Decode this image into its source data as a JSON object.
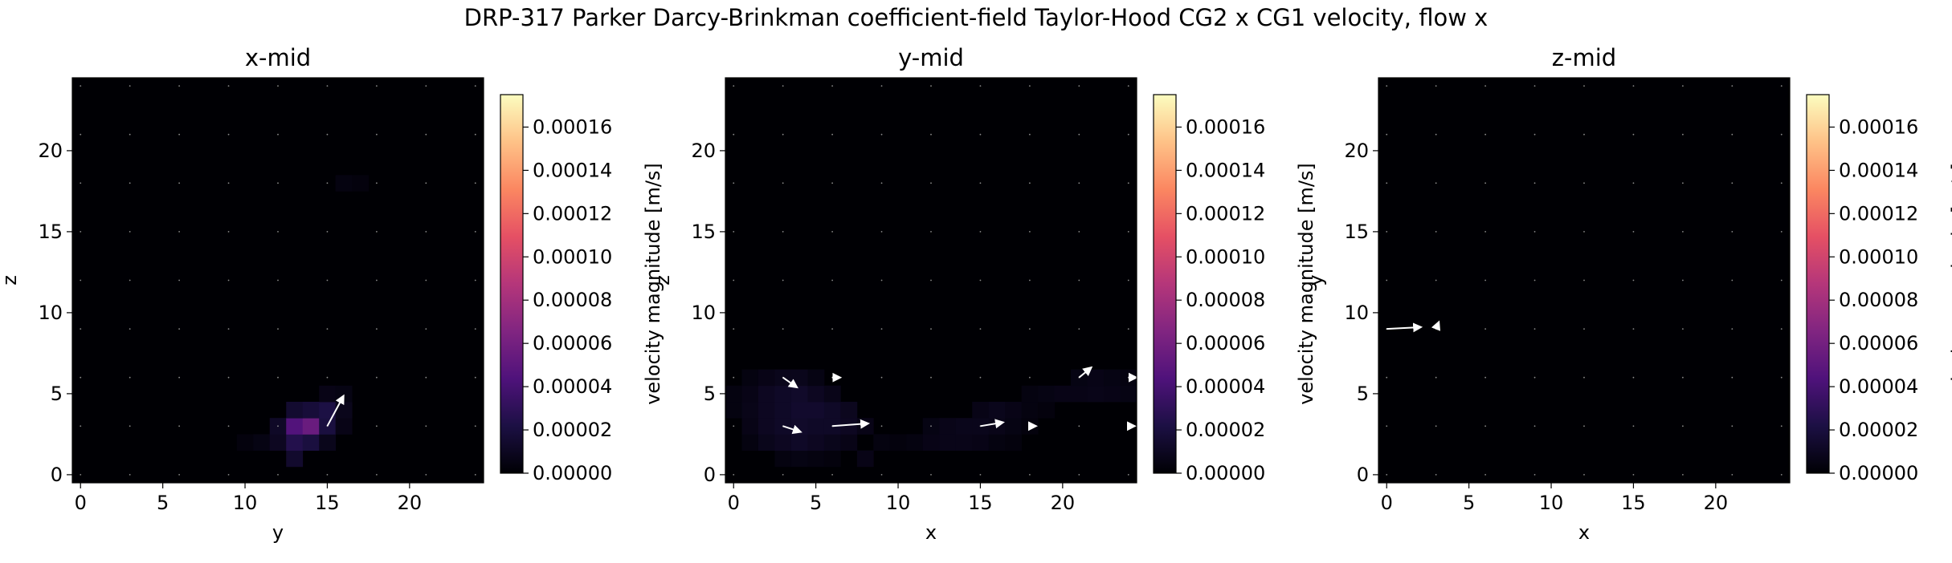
{
  "figure": {
    "suptitle": "DRP-317 Parker Darcy-Brinkman coefficient-field Taylor-Hood CG2 x CG1 velocity, flow x"
  },
  "colormap": {
    "name": "magma",
    "stops": [
      "#000004",
      "#1c1044",
      "#4f127b",
      "#812581",
      "#b5367a",
      "#e55064",
      "#fb8761",
      "#fec287",
      "#fcfdbf"
    ]
  },
  "chart_data": [
    {
      "type": "heatmap",
      "title": "x-mid",
      "xlabel": "y",
      "ylabel": "z",
      "xlim": [
        -0.5,
        24.5
      ],
      "ylim": [
        -0.5,
        24.5
      ],
      "xticks": [
        0,
        5,
        10,
        15,
        20
      ],
      "yticks": [
        0,
        5,
        10,
        15,
        20
      ],
      "grid_size": 25,
      "colorbar": {
        "label": "velocity magnitude [m/s]",
        "range": [
          0,
          0.000175
        ],
        "ticks": [
          "0.00000",
          "0.00002",
          "0.00004",
          "0.00006",
          "0.00008",
          "0.00010",
          "0.00012",
          "0.00014",
          "0.00016"
        ]
      },
      "cells": [
        [
          13,
          1,
          1.4e-05
        ],
        [
          10,
          2,
          3e-06
        ],
        [
          11,
          2,
          5e-06
        ],
        [
          12,
          2,
          1e-05
        ],
        [
          13,
          2,
          2.5e-05
        ],
        [
          14,
          2,
          2e-05
        ],
        [
          15,
          2,
          8e-06
        ],
        [
          12,
          3,
          1.2e-05
        ],
        [
          13,
          3,
          4.5e-05
        ],
        [
          14,
          3,
          5.5e-05
        ],
        [
          15,
          3,
          2e-05
        ],
        [
          16,
          3,
          6e-06
        ],
        [
          13,
          4,
          1.5e-05
        ],
        [
          14,
          4,
          1.8e-05
        ],
        [
          15,
          4,
          2.2e-05
        ],
        [
          16,
          4,
          8e-06
        ],
        [
          15,
          5,
          6e-06
        ],
        [
          16,
          5,
          5e-06
        ],
        [
          16,
          18,
          4e-06
        ],
        [
          17,
          18,
          3e-06
        ]
      ],
      "arrows": [
        {
          "x": 15.0,
          "y": 3.0,
          "dx": 0.9,
          "dy": 1.7
        }
      ]
    },
    {
      "type": "heatmap",
      "title": "y-mid",
      "xlabel": "x",
      "ylabel": "z",
      "xlim": [
        -0.5,
        24.5
      ],
      "ylim": [
        -0.5,
        24.5
      ],
      "xticks": [
        0,
        5,
        10,
        15,
        20
      ],
      "yticks": [
        0,
        5,
        10,
        15,
        20
      ],
      "grid_size": 25,
      "colorbar": {
        "label": "velocity magnitude [m/s]",
        "range": [
          0,
          0.000175
        ],
        "ticks": [
          "0.00000",
          "0.00002",
          "0.00004",
          "0.00006",
          "0.00008",
          "0.00010",
          "0.00012",
          "0.00014",
          "0.00016"
        ]
      },
      "cells": [
        [
          3,
          1,
          4e-06
        ],
        [
          4,
          1,
          5e-06
        ],
        [
          5,
          1,
          4e-06
        ],
        [
          6,
          1,
          3e-06
        ],
        [
          8,
          1,
          6e-06
        ],
        [
          1,
          2,
          4e-06
        ],
        [
          2,
          2,
          8e-06
        ],
        [
          3,
          2,
          1e-05
        ],
        [
          4,
          2,
          1.2e-05
        ],
        [
          5,
          2,
          1e-05
        ],
        [
          6,
          2,
          8e-06
        ],
        [
          7,
          2,
          6e-06
        ],
        [
          9,
          2,
          4e-06
        ],
        [
          10,
          2,
          3e-06
        ],
        [
          11,
          2,
          4e-06
        ],
        [
          12,
          2,
          6e-06
        ],
        [
          13,
          2,
          7e-06
        ],
        [
          14,
          2,
          7e-06
        ],
        [
          15,
          2,
          6e-06
        ],
        [
          16,
          2,
          4e-06
        ],
        [
          17,
          2,
          3e-06
        ],
        [
          1,
          3,
          6e-06
        ],
        [
          2,
          3,
          1e-05
        ],
        [
          3,
          3,
          1.2e-05
        ],
        [
          4,
          3,
          1.3e-05
        ],
        [
          5,
          3,
          1.2e-05
        ],
        [
          6,
          3,
          1.2e-05
        ],
        [
          7,
          3,
          1e-05
        ],
        [
          8,
          3,
          6e-06
        ],
        [
          12,
          3,
          5e-06
        ],
        [
          13,
          3,
          7e-06
        ],
        [
          14,
          3,
          8e-06
        ],
        [
          15,
          3,
          8e-06
        ],
        [
          16,
          3,
          7e-06
        ],
        [
          17,
          3,
          5e-06
        ],
        [
          18,
          3,
          3e-06
        ],
        [
          0,
          4,
          4e-06
        ],
        [
          1,
          4,
          7e-06
        ],
        [
          2,
          4,
          1e-05
        ],
        [
          3,
          4,
          1.2e-05
        ],
        [
          4,
          4,
          1.4e-05
        ],
        [
          5,
          4,
          1.4e-05
        ],
        [
          6,
          4,
          1.2e-05
        ],
        [
          7,
          4,
          9e-06
        ],
        [
          15,
          4,
          6e-06
        ],
        [
          16,
          4,
          8e-06
        ],
        [
          17,
          4,
          6e-06
        ],
        [
          18,
          4,
          4e-06
        ],
        [
          19,
          4,
          3e-06
        ],
        [
          0,
          5,
          4e-06
        ],
        [
          1,
          5,
          6e-06
        ],
        [
          2,
          5,
          1e-05
        ],
        [
          3,
          5,
          1.2e-05
        ],
        [
          4,
          5,
          1.3e-05
        ],
        [
          5,
          5,
          1e-05
        ],
        [
          6,
          5,
          7e-06
        ],
        [
          18,
          5,
          4e-06
        ],
        [
          19,
          5,
          5e-06
        ],
        [
          20,
          5,
          6e-06
        ],
        [
          21,
          5,
          6e-06
        ],
        [
          22,
          5,
          7e-06
        ],
        [
          23,
          5,
          6e-06
        ],
        [
          24,
          5,
          5e-06
        ],
        [
          1,
          6,
          4e-06
        ],
        [
          2,
          6,
          6e-06
        ],
        [
          3,
          6,
          8e-06
        ],
        [
          4,
          6,
          8e-06
        ],
        [
          5,
          6,
          5e-06
        ],
        [
          21,
          6,
          5e-06
        ],
        [
          22,
          6,
          6e-06
        ],
        [
          23,
          6,
          5e-06
        ],
        [
          24,
          6,
          4e-06
        ]
      ],
      "arrows": [
        {
          "x": 3.0,
          "y": 6.0,
          "dx": 0.7,
          "dy": -0.5
        },
        {
          "x": 6.0,
          "y": 6.0,
          "dx": 0.3,
          "dy": 0.0
        },
        {
          "x": 3.0,
          "y": 3.0,
          "dx": 0.9,
          "dy": -0.3
        },
        {
          "x": 6.0,
          "y": 3.0,
          "dx": 2.0,
          "dy": 0.15
        },
        {
          "x": 15.0,
          "y": 3.0,
          "dx": 1.2,
          "dy": 0.2
        },
        {
          "x": 18.0,
          "y": 3.0,
          "dx": 0.2,
          "dy": 0.0
        },
        {
          "x": 21.0,
          "y": 6.0,
          "dx": 0.6,
          "dy": 0.5
        },
        {
          "x": 24.0,
          "y": 6.0,
          "dx": 0.3,
          "dy": 0.0
        },
        {
          "x": 24.0,
          "y": 3.0,
          "dx": 0.2,
          "dy": 0.0
        }
      ]
    },
    {
      "type": "heatmap",
      "title": "z-mid",
      "xlabel": "x",
      "ylabel": "y",
      "xlim": [
        -0.5,
        24.5
      ],
      "ylim": [
        -0.5,
        24.5
      ],
      "xticks": [
        0,
        5,
        10,
        15,
        20
      ],
      "yticks": [
        0,
        5,
        10,
        15,
        20
      ],
      "grid_size": 25,
      "colorbar": {
        "label": "velocity magnitude [m/s]",
        "range": [
          0,
          0.000175
        ],
        "ticks": [
          "0.00000",
          "0.00002",
          "0.00004",
          "0.00006",
          "0.00008",
          "0.00010",
          "0.00012",
          "0.00014",
          "0.00016"
        ]
      },
      "cells": [],
      "arrows": [
        {
          "x": 0.0,
          "y": 9.0,
          "dx": 1.9,
          "dy": 0.1
        },
        {
          "x": 3.0,
          "y": 9.0,
          "dx": 0.1,
          "dy": 0.25
        }
      ]
    }
  ]
}
